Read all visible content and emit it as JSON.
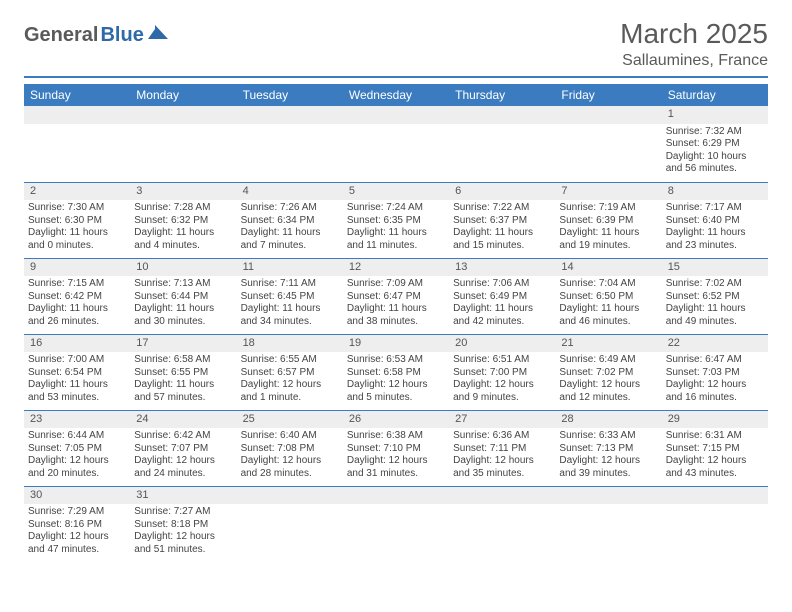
{
  "logo": {
    "general": "General",
    "blue": "Blue"
  },
  "title": "March 2025",
  "location": "Sallaumines, France",
  "colors": {
    "accent": "#3b7bbf",
    "header_text": "#ffffff",
    "daynum_bg": "#eeeeee",
    "body_text": "#444444",
    "title_text": "#5a5a5a",
    "logo_blue": "#2e6aa8"
  },
  "weekdays": [
    "Sunday",
    "Monday",
    "Tuesday",
    "Wednesday",
    "Thursday",
    "Friday",
    "Saturday"
  ],
  "weeks": [
    [
      null,
      null,
      null,
      null,
      null,
      null,
      {
        "n": "1",
        "sr": "Sunrise: 7:32 AM",
        "ss": "Sunset: 6:29 PM",
        "dl": "Daylight: 10 hours and 56 minutes."
      }
    ],
    [
      {
        "n": "2",
        "sr": "Sunrise: 7:30 AM",
        "ss": "Sunset: 6:30 PM",
        "dl": "Daylight: 11 hours and 0 minutes."
      },
      {
        "n": "3",
        "sr": "Sunrise: 7:28 AM",
        "ss": "Sunset: 6:32 PM",
        "dl": "Daylight: 11 hours and 4 minutes."
      },
      {
        "n": "4",
        "sr": "Sunrise: 7:26 AM",
        "ss": "Sunset: 6:34 PM",
        "dl": "Daylight: 11 hours and 7 minutes."
      },
      {
        "n": "5",
        "sr": "Sunrise: 7:24 AM",
        "ss": "Sunset: 6:35 PM",
        "dl": "Daylight: 11 hours and 11 minutes."
      },
      {
        "n": "6",
        "sr": "Sunrise: 7:22 AM",
        "ss": "Sunset: 6:37 PM",
        "dl": "Daylight: 11 hours and 15 minutes."
      },
      {
        "n": "7",
        "sr": "Sunrise: 7:19 AM",
        "ss": "Sunset: 6:39 PM",
        "dl": "Daylight: 11 hours and 19 minutes."
      },
      {
        "n": "8",
        "sr": "Sunrise: 7:17 AM",
        "ss": "Sunset: 6:40 PM",
        "dl": "Daylight: 11 hours and 23 minutes."
      }
    ],
    [
      {
        "n": "9",
        "sr": "Sunrise: 7:15 AM",
        "ss": "Sunset: 6:42 PM",
        "dl": "Daylight: 11 hours and 26 minutes."
      },
      {
        "n": "10",
        "sr": "Sunrise: 7:13 AM",
        "ss": "Sunset: 6:44 PM",
        "dl": "Daylight: 11 hours and 30 minutes."
      },
      {
        "n": "11",
        "sr": "Sunrise: 7:11 AM",
        "ss": "Sunset: 6:45 PM",
        "dl": "Daylight: 11 hours and 34 minutes."
      },
      {
        "n": "12",
        "sr": "Sunrise: 7:09 AM",
        "ss": "Sunset: 6:47 PM",
        "dl": "Daylight: 11 hours and 38 minutes."
      },
      {
        "n": "13",
        "sr": "Sunrise: 7:06 AM",
        "ss": "Sunset: 6:49 PM",
        "dl": "Daylight: 11 hours and 42 minutes."
      },
      {
        "n": "14",
        "sr": "Sunrise: 7:04 AM",
        "ss": "Sunset: 6:50 PM",
        "dl": "Daylight: 11 hours and 46 minutes."
      },
      {
        "n": "15",
        "sr": "Sunrise: 7:02 AM",
        "ss": "Sunset: 6:52 PM",
        "dl": "Daylight: 11 hours and 49 minutes."
      }
    ],
    [
      {
        "n": "16",
        "sr": "Sunrise: 7:00 AM",
        "ss": "Sunset: 6:54 PM",
        "dl": "Daylight: 11 hours and 53 minutes."
      },
      {
        "n": "17",
        "sr": "Sunrise: 6:58 AM",
        "ss": "Sunset: 6:55 PM",
        "dl": "Daylight: 11 hours and 57 minutes."
      },
      {
        "n": "18",
        "sr": "Sunrise: 6:55 AM",
        "ss": "Sunset: 6:57 PM",
        "dl": "Daylight: 12 hours and 1 minute."
      },
      {
        "n": "19",
        "sr": "Sunrise: 6:53 AM",
        "ss": "Sunset: 6:58 PM",
        "dl": "Daylight: 12 hours and 5 minutes."
      },
      {
        "n": "20",
        "sr": "Sunrise: 6:51 AM",
        "ss": "Sunset: 7:00 PM",
        "dl": "Daylight: 12 hours and 9 minutes."
      },
      {
        "n": "21",
        "sr": "Sunrise: 6:49 AM",
        "ss": "Sunset: 7:02 PM",
        "dl": "Daylight: 12 hours and 12 minutes."
      },
      {
        "n": "22",
        "sr": "Sunrise: 6:47 AM",
        "ss": "Sunset: 7:03 PM",
        "dl": "Daylight: 12 hours and 16 minutes."
      }
    ],
    [
      {
        "n": "23",
        "sr": "Sunrise: 6:44 AM",
        "ss": "Sunset: 7:05 PM",
        "dl": "Daylight: 12 hours and 20 minutes."
      },
      {
        "n": "24",
        "sr": "Sunrise: 6:42 AM",
        "ss": "Sunset: 7:07 PM",
        "dl": "Daylight: 12 hours and 24 minutes."
      },
      {
        "n": "25",
        "sr": "Sunrise: 6:40 AM",
        "ss": "Sunset: 7:08 PM",
        "dl": "Daylight: 12 hours and 28 minutes."
      },
      {
        "n": "26",
        "sr": "Sunrise: 6:38 AM",
        "ss": "Sunset: 7:10 PM",
        "dl": "Daylight: 12 hours and 31 minutes."
      },
      {
        "n": "27",
        "sr": "Sunrise: 6:36 AM",
        "ss": "Sunset: 7:11 PM",
        "dl": "Daylight: 12 hours and 35 minutes."
      },
      {
        "n": "28",
        "sr": "Sunrise: 6:33 AM",
        "ss": "Sunset: 7:13 PM",
        "dl": "Daylight: 12 hours and 39 minutes."
      },
      {
        "n": "29",
        "sr": "Sunrise: 6:31 AM",
        "ss": "Sunset: 7:15 PM",
        "dl": "Daylight: 12 hours and 43 minutes."
      }
    ],
    [
      {
        "n": "30",
        "sr": "Sunrise: 7:29 AM",
        "ss": "Sunset: 8:16 PM",
        "dl": "Daylight: 12 hours and 47 minutes."
      },
      {
        "n": "31",
        "sr": "Sunrise: 7:27 AM",
        "ss": "Sunset: 8:18 PM",
        "dl": "Daylight: 12 hours and 51 minutes."
      },
      null,
      null,
      null,
      null,
      null
    ]
  ]
}
